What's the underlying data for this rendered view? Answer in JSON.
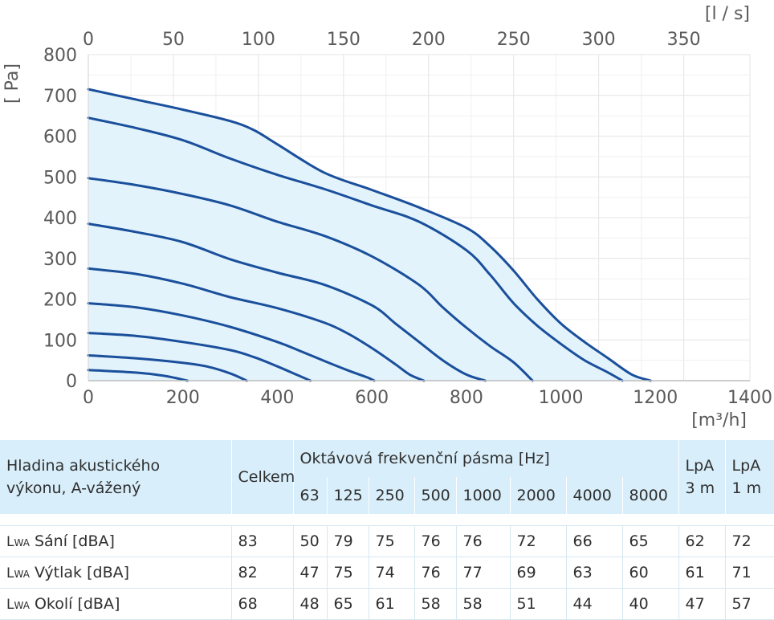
{
  "chart_data": {
    "type": "line",
    "x_unit": "[m³/h]",
    "x2_unit": "[l / s]",
    "y_unit": "[ Pa]",
    "xlim": [
      0,
      1400
    ],
    "ylim": [
      0,
      800
    ],
    "x_ticks": [
      0,
      200,
      400,
      600,
      800,
      1000,
      1200,
      1400
    ],
    "x2_ticks": [
      0,
      50,
      100,
      150,
      200,
      250,
      300,
      350
    ],
    "y_ticks": [
      0,
      100,
      200,
      300,
      400,
      500,
      600,
      700,
      800
    ],
    "grid": true,
    "fill_color": "#e3f3fb",
    "line_color": "#1a4f9c",
    "series": [
      {
        "points": [
          [
            0,
            715
          ],
          [
            100,
            690
          ],
          [
            200,
            665
          ],
          [
            300,
            637
          ],
          [
            350,
            615
          ],
          [
            400,
            580
          ],
          [
            500,
            510
          ],
          [
            600,
            468
          ],
          [
            700,
            425
          ],
          [
            800,
            375
          ],
          [
            850,
            330
          ],
          [
            900,
            270
          ],
          [
            950,
            200
          ],
          [
            1000,
            140
          ],
          [
            1050,
            95
          ],
          [
            1100,
            55
          ],
          [
            1150,
            15
          ],
          [
            1190,
            0
          ]
        ]
      },
      {
        "points": [
          [
            0,
            645
          ],
          [
            100,
            620
          ],
          [
            200,
            590
          ],
          [
            300,
            545
          ],
          [
            400,
            505
          ],
          [
            500,
            470
          ],
          [
            600,
            430
          ],
          [
            700,
            390
          ],
          [
            800,
            320
          ],
          [
            850,
            260
          ],
          [
            900,
            190
          ],
          [
            950,
            135
          ],
          [
            1000,
            90
          ],
          [
            1050,
            50
          ],
          [
            1100,
            20
          ],
          [
            1130,
            0
          ]
        ]
      },
      {
        "points": [
          [
            0,
            497
          ],
          [
            100,
            480
          ],
          [
            200,
            458
          ],
          [
            300,
            430
          ],
          [
            400,
            390
          ],
          [
            500,
            355
          ],
          [
            600,
            305
          ],
          [
            700,
            235
          ],
          [
            750,
            180
          ],
          [
            800,
            130
          ],
          [
            850,
            85
          ],
          [
            900,
            45
          ],
          [
            940,
            0
          ]
        ]
      },
      {
        "points": [
          [
            0,
            385
          ],
          [
            100,
            365
          ],
          [
            200,
            340
          ],
          [
            300,
            298
          ],
          [
            400,
            265
          ],
          [
            500,
            235
          ],
          [
            600,
            185
          ],
          [
            650,
            140
          ],
          [
            700,
            95
          ],
          [
            750,
            50
          ],
          [
            800,
            15
          ],
          [
            840,
            0
          ]
        ]
      },
      {
        "points": [
          [
            0,
            275
          ],
          [
            100,
            262
          ],
          [
            200,
            238
          ],
          [
            300,
            205
          ],
          [
            400,
            178
          ],
          [
            500,
            142
          ],
          [
            550,
            115
          ],
          [
            600,
            80
          ],
          [
            650,
            40
          ],
          [
            680,
            15
          ],
          [
            710,
            0
          ]
        ]
      },
      {
        "points": [
          [
            0,
            190
          ],
          [
            100,
            180
          ],
          [
            200,
            160
          ],
          [
            300,
            132
          ],
          [
            400,
            95
          ],
          [
            450,
            72
          ],
          [
            500,
            48
          ],
          [
            550,
            25
          ],
          [
            590,
            8
          ],
          [
            605,
            0
          ]
        ]
      },
      {
        "points": [
          [
            0,
            117
          ],
          [
            100,
            110
          ],
          [
            200,
            95
          ],
          [
            300,
            75
          ],
          [
            350,
            58
          ],
          [
            400,
            35
          ],
          [
            440,
            15
          ],
          [
            470,
            0
          ]
        ]
      },
      {
        "points": [
          [
            0,
            62
          ],
          [
            100,
            55
          ],
          [
            200,
            44
          ],
          [
            250,
            35
          ],
          [
            300,
            18
          ],
          [
            335,
            0
          ]
        ]
      },
      {
        "points": [
          [
            0,
            26
          ],
          [
            100,
            20
          ],
          [
            160,
            12
          ],
          [
            210,
            0
          ]
        ]
      }
    ]
  },
  "table": {
    "header_title": "Hladina akustického\nvýkonu, A-vážený",
    "total_label": "Celkem",
    "band_title": "Oktávová frekvenční pásma [Hz]",
    "bands": [
      "63",
      "125",
      "250",
      "500",
      "1000",
      "2000",
      "4000",
      "8000"
    ],
    "lpa3": "LpA\n3 m",
    "lpa1": "LpA\n1 m",
    "rows": [
      {
        "prefix": "L",
        "sub": "WA",
        "label": " Sání [dBA]",
        "total": "83",
        "values": [
          "50",
          "79",
          "75",
          "76",
          "76",
          "72",
          "66",
          "65"
        ],
        "lpa3": "62",
        "lpa1": "72"
      },
      {
        "prefix": "L",
        "sub": "WA",
        "label": " Výtlak [dBA]",
        "total": "82",
        "values": [
          "47",
          "75",
          "74",
          "76",
          "77",
          "69",
          "63",
          "60"
        ],
        "lpa3": "61",
        "lpa1": "71"
      },
      {
        "prefix": "L",
        "sub": "WA",
        "label": " Okolí [dBA]",
        "total": "68",
        "values": [
          "48",
          "65",
          "61",
          "58",
          "58",
          "51",
          "44",
          "40"
        ],
        "lpa3": "47",
        "lpa1": "57"
      }
    ]
  }
}
